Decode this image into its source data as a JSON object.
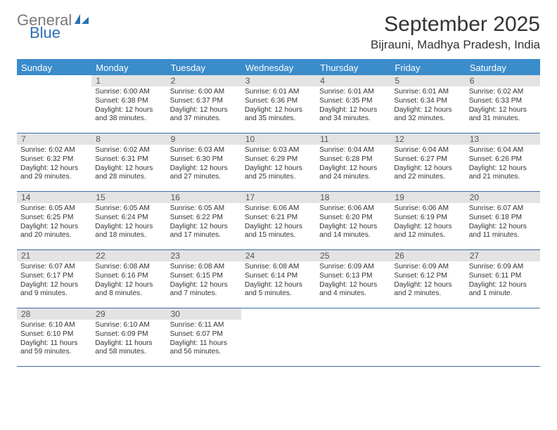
{
  "branding": {
    "text1": "General",
    "text2": "Blue",
    "icon_color": "#2a6fb5"
  },
  "header": {
    "month_title": "September 2025",
    "location": "Bijrauni, Madhya Pradesh, India"
  },
  "styling": {
    "header_bg": "#3b8ccb",
    "header_text": "#ffffff",
    "daynum_bg": "#e3e3e3",
    "week_border": "#3b6da0",
    "body_fontsize": 10.2
  },
  "day_names": [
    "Sunday",
    "Monday",
    "Tuesday",
    "Wednesday",
    "Thursday",
    "Friday",
    "Saturday"
  ],
  "weeks": [
    [
      {
        "n": "",
        "sr": "",
        "ss": "",
        "dl": ""
      },
      {
        "n": "1",
        "sr": "Sunrise: 6:00 AM",
        "ss": "Sunset: 6:38 PM",
        "dl": "Daylight: 12 hours and 38 minutes."
      },
      {
        "n": "2",
        "sr": "Sunrise: 6:00 AM",
        "ss": "Sunset: 6:37 PM",
        "dl": "Daylight: 12 hours and 37 minutes."
      },
      {
        "n": "3",
        "sr": "Sunrise: 6:01 AM",
        "ss": "Sunset: 6:36 PM",
        "dl": "Daylight: 12 hours and 35 minutes."
      },
      {
        "n": "4",
        "sr": "Sunrise: 6:01 AM",
        "ss": "Sunset: 6:35 PM",
        "dl": "Daylight: 12 hours and 34 minutes."
      },
      {
        "n": "5",
        "sr": "Sunrise: 6:01 AM",
        "ss": "Sunset: 6:34 PM",
        "dl": "Daylight: 12 hours and 32 minutes."
      },
      {
        "n": "6",
        "sr": "Sunrise: 6:02 AM",
        "ss": "Sunset: 6:33 PM",
        "dl": "Daylight: 12 hours and 31 minutes."
      }
    ],
    [
      {
        "n": "7",
        "sr": "Sunrise: 6:02 AM",
        "ss": "Sunset: 6:32 PM",
        "dl": "Daylight: 12 hours and 29 minutes."
      },
      {
        "n": "8",
        "sr": "Sunrise: 6:02 AM",
        "ss": "Sunset: 6:31 PM",
        "dl": "Daylight: 12 hours and 28 minutes."
      },
      {
        "n": "9",
        "sr": "Sunrise: 6:03 AM",
        "ss": "Sunset: 6:30 PM",
        "dl": "Daylight: 12 hours and 27 minutes."
      },
      {
        "n": "10",
        "sr": "Sunrise: 6:03 AM",
        "ss": "Sunset: 6:29 PM",
        "dl": "Daylight: 12 hours and 25 minutes."
      },
      {
        "n": "11",
        "sr": "Sunrise: 6:04 AM",
        "ss": "Sunset: 6:28 PM",
        "dl": "Daylight: 12 hours and 24 minutes."
      },
      {
        "n": "12",
        "sr": "Sunrise: 6:04 AM",
        "ss": "Sunset: 6:27 PM",
        "dl": "Daylight: 12 hours and 22 minutes."
      },
      {
        "n": "13",
        "sr": "Sunrise: 6:04 AM",
        "ss": "Sunset: 6:26 PM",
        "dl": "Daylight: 12 hours and 21 minutes."
      }
    ],
    [
      {
        "n": "14",
        "sr": "Sunrise: 6:05 AM",
        "ss": "Sunset: 6:25 PM",
        "dl": "Daylight: 12 hours and 20 minutes."
      },
      {
        "n": "15",
        "sr": "Sunrise: 6:05 AM",
        "ss": "Sunset: 6:24 PM",
        "dl": "Daylight: 12 hours and 18 minutes."
      },
      {
        "n": "16",
        "sr": "Sunrise: 6:05 AM",
        "ss": "Sunset: 6:22 PM",
        "dl": "Daylight: 12 hours and 17 minutes."
      },
      {
        "n": "17",
        "sr": "Sunrise: 6:06 AM",
        "ss": "Sunset: 6:21 PM",
        "dl": "Daylight: 12 hours and 15 minutes."
      },
      {
        "n": "18",
        "sr": "Sunrise: 6:06 AM",
        "ss": "Sunset: 6:20 PM",
        "dl": "Daylight: 12 hours and 14 minutes."
      },
      {
        "n": "19",
        "sr": "Sunrise: 6:06 AM",
        "ss": "Sunset: 6:19 PM",
        "dl": "Daylight: 12 hours and 12 minutes."
      },
      {
        "n": "20",
        "sr": "Sunrise: 6:07 AM",
        "ss": "Sunset: 6:18 PM",
        "dl": "Daylight: 12 hours and 11 minutes."
      }
    ],
    [
      {
        "n": "21",
        "sr": "Sunrise: 6:07 AM",
        "ss": "Sunset: 6:17 PM",
        "dl": "Daylight: 12 hours and 9 minutes."
      },
      {
        "n": "22",
        "sr": "Sunrise: 6:08 AM",
        "ss": "Sunset: 6:16 PM",
        "dl": "Daylight: 12 hours and 8 minutes."
      },
      {
        "n": "23",
        "sr": "Sunrise: 6:08 AM",
        "ss": "Sunset: 6:15 PM",
        "dl": "Daylight: 12 hours and 7 minutes."
      },
      {
        "n": "24",
        "sr": "Sunrise: 6:08 AM",
        "ss": "Sunset: 6:14 PM",
        "dl": "Daylight: 12 hours and 5 minutes."
      },
      {
        "n": "25",
        "sr": "Sunrise: 6:09 AM",
        "ss": "Sunset: 6:13 PM",
        "dl": "Daylight: 12 hours and 4 minutes."
      },
      {
        "n": "26",
        "sr": "Sunrise: 6:09 AM",
        "ss": "Sunset: 6:12 PM",
        "dl": "Daylight: 12 hours and 2 minutes."
      },
      {
        "n": "27",
        "sr": "Sunrise: 6:09 AM",
        "ss": "Sunset: 6:11 PM",
        "dl": "Daylight: 12 hours and 1 minute."
      }
    ],
    [
      {
        "n": "28",
        "sr": "Sunrise: 6:10 AM",
        "ss": "Sunset: 6:10 PM",
        "dl": "Daylight: 11 hours and 59 minutes."
      },
      {
        "n": "29",
        "sr": "Sunrise: 6:10 AM",
        "ss": "Sunset: 6:09 PM",
        "dl": "Daylight: 11 hours and 58 minutes."
      },
      {
        "n": "30",
        "sr": "Sunrise: 6:11 AM",
        "ss": "Sunset: 6:07 PM",
        "dl": "Daylight: 11 hours and 56 minutes."
      },
      {
        "n": "",
        "sr": "",
        "ss": "",
        "dl": ""
      },
      {
        "n": "",
        "sr": "",
        "ss": "",
        "dl": ""
      },
      {
        "n": "",
        "sr": "",
        "ss": "",
        "dl": ""
      },
      {
        "n": "",
        "sr": "",
        "ss": "",
        "dl": ""
      }
    ]
  ]
}
